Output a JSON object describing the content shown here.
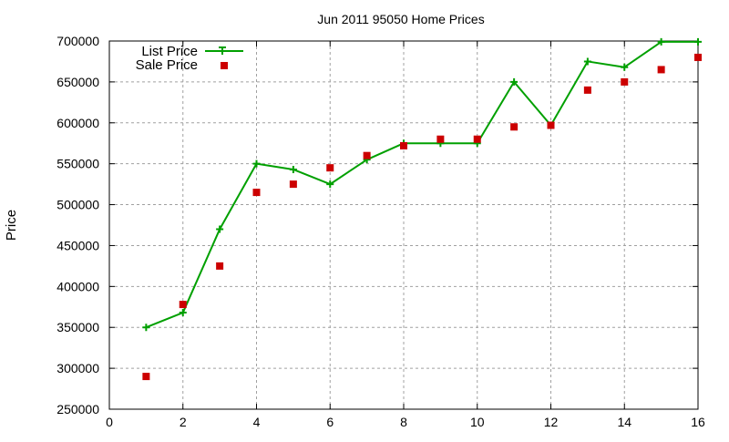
{
  "chart_data": {
    "type": "line",
    "title": "Jun 2011 95050 Home Prices",
    "xlabel": "",
    "ylabel": "Price",
    "xlim": [
      0,
      16
    ],
    "ylim": [
      250000,
      700000
    ],
    "x_ticks": [
      "0",
      "2",
      "4",
      "6",
      "8",
      "10",
      "12",
      "14",
      "16"
    ],
    "y_ticks": [
      "250000",
      "300000",
      "350000",
      "400000",
      "450000",
      "500000",
      "550000",
      "600000",
      "650000",
      "700000"
    ],
    "grid": true,
    "legend_position": "top-left",
    "x": [
      1,
      2,
      3,
      4,
      5,
      6,
      7,
      8,
      9,
      10,
      11,
      12,
      13,
      14,
      15,
      16
    ],
    "series": [
      {
        "name": "List Price",
        "style": "linespoints",
        "marker": "plus",
        "color": "#00a000",
        "values": [
          350000,
          368000,
          470000,
          550000,
          543000,
          525000,
          555000,
          575000,
          575000,
          575000,
          650000,
          597000,
          675000,
          668000,
          699000,
          699000
        ]
      },
      {
        "name": "Sale Price",
        "style": "points",
        "marker": "square",
        "color": "#cc0000",
        "values": [
          290000,
          378000,
          425000,
          515000,
          525000,
          545000,
          560000,
          572000,
          580000,
          580000,
          595000,
          597000,
          640000,
          650000,
          665000,
          680000
        ]
      }
    ]
  },
  "colors": {
    "grid": "#a0a0a0",
    "axis": "#000000",
    "background": "#ffffff"
  }
}
